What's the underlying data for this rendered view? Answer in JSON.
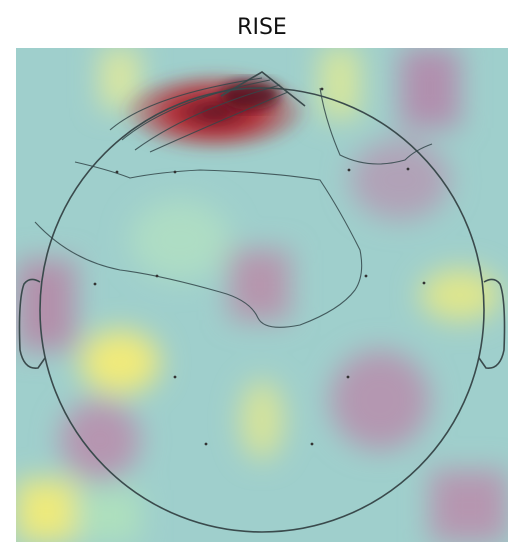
{
  "figure": {
    "title": "RISE"
  }
}
